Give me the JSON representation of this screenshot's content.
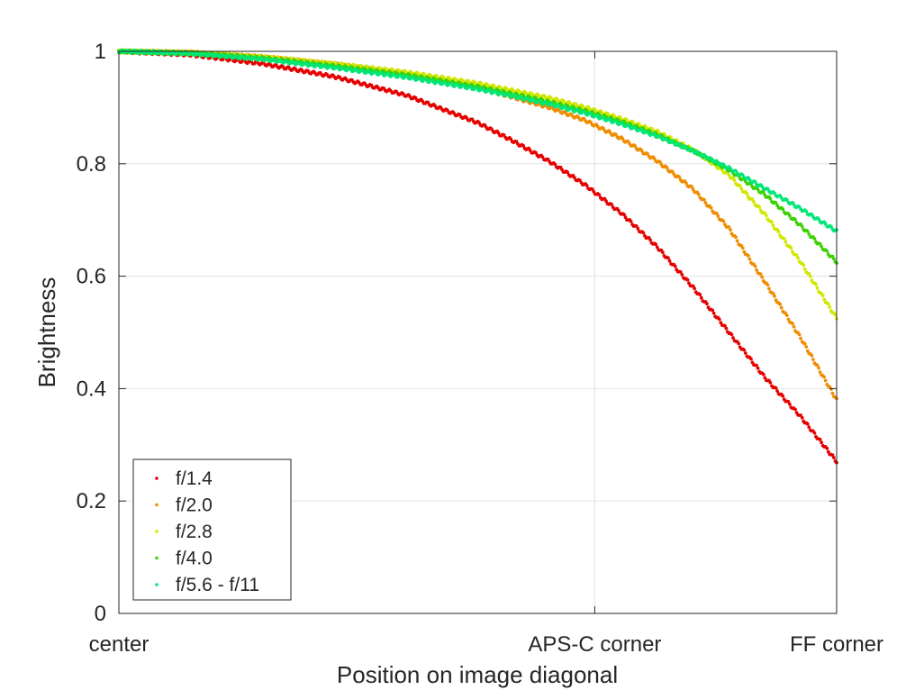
{
  "chart_data": {
    "type": "scatter",
    "title": "",
    "xlabel": "Position on image diagonal",
    "ylabel": "Brightness",
    "xlim": [
      0,
      1
    ],
    "ylim": [
      0,
      1
    ],
    "grid": true,
    "legend_placement": "bottom-left",
    "x_ticks": [
      {
        "value": 0.0,
        "label": "center"
      },
      {
        "value": 0.663,
        "label": "APS-C corner"
      },
      {
        "value": 1.0,
        "label": "FF corner"
      }
    ],
    "y_ticks": [
      {
        "value": 0,
        "label": "0"
      },
      {
        "value": 0.2,
        "label": "0.2"
      },
      {
        "value": 0.4,
        "label": "0.4"
      },
      {
        "value": 0.6,
        "label": "0.6"
      },
      {
        "value": 0.8,
        "label": "0.8"
      },
      {
        "value": 1.0,
        "label": "1"
      }
    ],
    "series": [
      {
        "name": "f/1.4",
        "color": "#e60000",
        "x": [
          0,
          0.1,
          0.2,
          0.3,
          0.4,
          0.5,
          0.55,
          0.6,
          0.65,
          0.7,
          0.75,
          0.8,
          0.85,
          0.9,
          0.95,
          1.0
        ],
        "y": [
          1.0,
          0.994,
          0.978,
          0.955,
          0.922,
          0.873,
          0.84,
          0.804,
          0.762,
          0.712,
          0.652,
          0.58,
          0.5,
          0.42,
          0.35,
          0.27
        ]
      },
      {
        "name": "f/2.0",
        "color": "#f08c00",
        "x": [
          0,
          0.1,
          0.2,
          0.3,
          0.4,
          0.5,
          0.55,
          0.6,
          0.65,
          0.7,
          0.75,
          0.8,
          0.85,
          0.9,
          0.95,
          1.0
        ],
        "y": [
          1.0,
          0.998,
          0.99,
          0.977,
          0.96,
          0.935,
          0.918,
          0.9,
          0.877,
          0.845,
          0.805,
          0.755,
          0.685,
          0.59,
          0.49,
          0.38
        ]
      },
      {
        "name": "f/2.8",
        "color": "#d2e600",
        "x": [
          0,
          0.1,
          0.2,
          0.3,
          0.4,
          0.5,
          0.55,
          0.6,
          0.65,
          0.7,
          0.75,
          0.8,
          0.85,
          0.9,
          0.95,
          1.0
        ],
        "y": [
          1.0,
          0.998,
          0.99,
          0.978,
          0.963,
          0.943,
          0.93,
          0.917,
          0.9,
          0.88,
          0.857,
          0.825,
          0.78,
          0.71,
          0.625,
          0.525
        ]
      },
      {
        "name": "f/4.0",
        "color": "#3cd200",
        "x": [
          0,
          0.1,
          0.2,
          0.3,
          0.4,
          0.5,
          0.55,
          0.6,
          0.65,
          0.7,
          0.75,
          0.8,
          0.85,
          0.9,
          0.95,
          1.0
        ],
        "y": [
          1.0,
          0.997,
          0.988,
          0.974,
          0.958,
          0.937,
          0.924,
          0.91,
          0.894,
          0.875,
          0.852,
          0.823,
          0.789,
          0.745,
          0.69,
          0.625
        ]
      },
      {
        "name": "f/5.6 - f/11",
        "color": "#00e678",
        "x": [
          0,
          0.1,
          0.2,
          0.3,
          0.4,
          0.5,
          0.55,
          0.6,
          0.65,
          0.7,
          0.75,
          0.8,
          0.85,
          0.9,
          0.95,
          1.0
        ],
        "y": [
          1.0,
          0.996,
          0.986,
          0.971,
          0.954,
          0.933,
          0.92,
          0.906,
          0.89,
          0.871,
          0.849,
          0.823,
          0.792,
          0.756,
          0.72,
          0.68
        ]
      }
    ]
  }
}
